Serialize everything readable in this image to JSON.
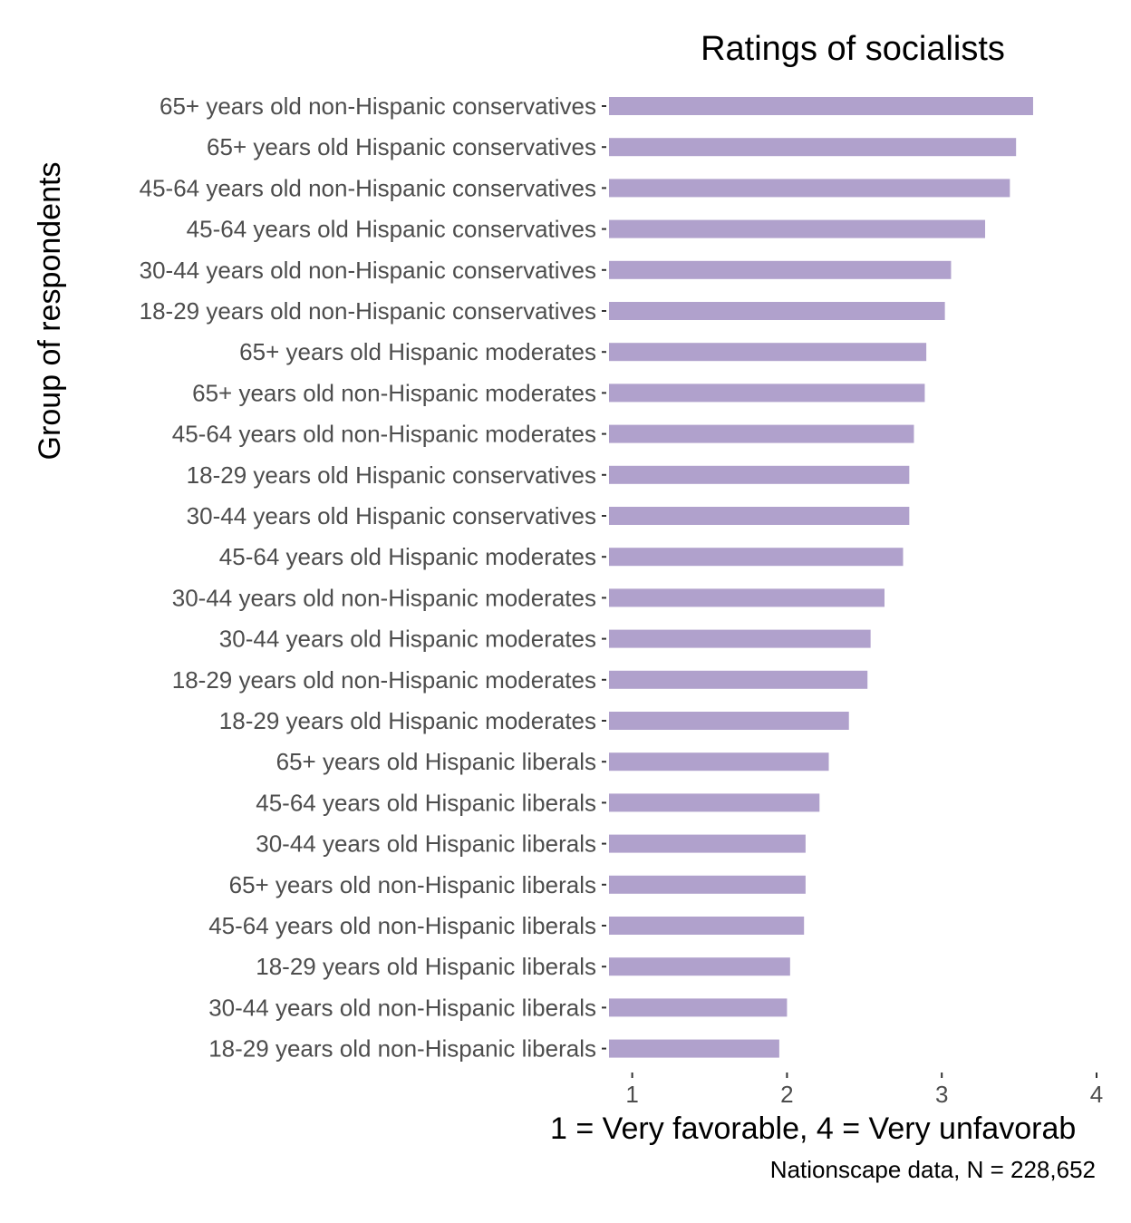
{
  "chart_data": {
    "type": "bar",
    "orientation": "horizontal",
    "title": "Ratings of socialists",
    "xlabel": "1 = Very favorable, 4 = Very unfavorab",
    "ylabel": "Group of respondents",
    "caption": "Nationscape data, N = 228,652",
    "xlim": [
      0.85,
      4.0
    ],
    "xticks": [
      1,
      2,
      3,
      4
    ],
    "xtick_labels": [
      "1",
      "2",
      "3",
      "4"
    ],
    "grid": false,
    "legend": "none",
    "bar_color": "#b0a1cc",
    "categories": [
      "65+ years old non-Hispanic conservatives",
      "65+ years old Hispanic conservatives",
      "45-64 years old non-Hispanic conservatives",
      "45-64 years old Hispanic conservatives",
      "30-44 years old non-Hispanic conservatives",
      "18-29 years old non-Hispanic conservatives",
      "65+ years old Hispanic moderates",
      "65+ years old non-Hispanic moderates",
      "45-64 years old non-Hispanic moderates",
      "18-29 years old Hispanic conservatives",
      "30-44 years old Hispanic conservatives",
      "45-64 years old Hispanic moderates",
      "30-44 years old non-Hispanic moderates",
      "30-44 years old Hispanic moderates",
      "18-29 years old non-Hispanic moderates",
      "18-29 years old Hispanic moderates",
      "65+ years old Hispanic liberals",
      "45-64 years old Hispanic liberals",
      "30-44 years old Hispanic liberals",
      "65+ years old non-Hispanic liberals",
      "45-64 years old non-Hispanic liberals",
      "18-29 years old Hispanic liberals",
      "30-44 years old non-Hispanic liberals",
      "18-29 years old non-Hispanic liberals"
    ],
    "values": [
      3.59,
      3.48,
      3.44,
      3.28,
      3.06,
      3.02,
      2.9,
      2.89,
      2.82,
      2.79,
      2.79,
      2.75,
      2.63,
      2.54,
      2.52,
      2.4,
      2.27,
      2.21,
      2.12,
      2.12,
      2.11,
      2.02,
      2.0,
      1.95
    ]
  }
}
